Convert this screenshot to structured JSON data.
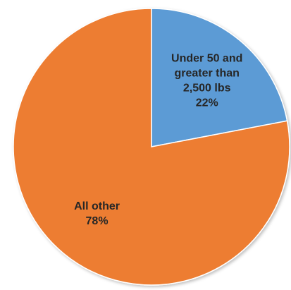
{
  "chart_data": {
    "type": "pie",
    "title": "",
    "start_angle_deg": 0,
    "direction": "clockwise",
    "slices": [
      {
        "label_lines": [
          "Under 50 and",
          "greater than",
          "2,500 lbs"
        ],
        "percent_label": "22%",
        "value": 22,
        "color": "#5b9bd5"
      },
      {
        "label_lines": [
          "All other"
        ],
        "percent_label": "78%",
        "value": 78,
        "color": "#ed7d31"
      }
    ],
    "legend": "none",
    "border_color": "#ffffff"
  }
}
